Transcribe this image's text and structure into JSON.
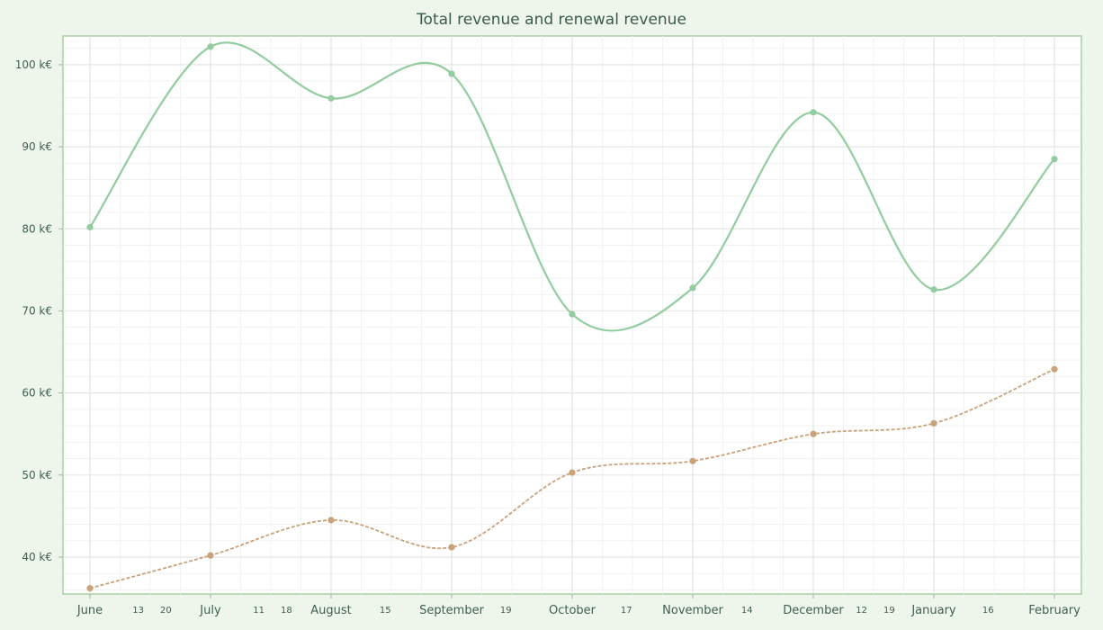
{
  "chart_data": {
    "type": "line",
    "title": "Total revenue and renewal revenue",
    "xlabel": "",
    "ylabel": "",
    "categories": [
      "June",
      "July",
      "August",
      "September",
      "October",
      "November",
      "December",
      "January",
      "February"
    ],
    "minor_ticks": [
      {
        "after": "June",
        "labels": [
          "13",
          "20"
        ]
      },
      {
        "after": "July",
        "labels": [
          "11",
          "18"
        ]
      },
      {
        "after": "August",
        "labels": [
          "15"
        ]
      },
      {
        "after": "September",
        "labels": [
          "19"
        ]
      },
      {
        "after": "October",
        "labels": [
          "17"
        ]
      },
      {
        "after": "November",
        "labels": [
          "14"
        ]
      },
      {
        "after": "December",
        "labels": [
          "12",
          "19"
        ]
      },
      {
        "after": "January",
        "labels": [
          "16"
        ]
      }
    ],
    "ylim": [
      35.5,
      103.5
    ],
    "y_ticks": [
      40,
      50,
      60,
      70,
      80,
      90,
      100
    ],
    "y_tick_labels": [
      "40 k€",
      "50 k€",
      "60 k€",
      "70 k€",
      "80 k€",
      "90 k€",
      "100 k€"
    ],
    "grid": true,
    "series": [
      {
        "values": [
          80.2,
          102.2,
          95.9,
          98.9,
          69.6,
          72.8,
          94.2,
          72.6,
          88.5
        ],
        "color": "#93cc9e",
        "dashed": false
      },
      {
        "values": [
          36.2,
          40.2,
          44.5,
          41.2,
          50.3,
          51.7,
          55.0,
          56.3,
          62.9
        ],
        "color": "#c9a27a",
        "dashed": true
      }
    ]
  }
}
